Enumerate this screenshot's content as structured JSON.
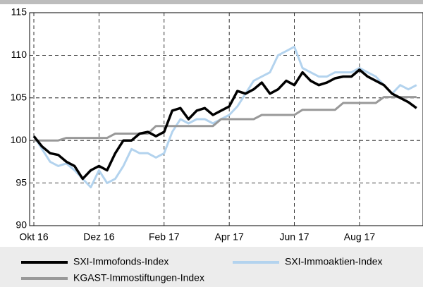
{
  "chart_data": {
    "type": "line",
    "x": [
      0,
      0.25,
      0.5,
      0.75,
      1,
      1.25,
      1.5,
      1.75,
      2,
      2.25,
      2.5,
      2.75,
      3,
      3.25,
      3.5,
      3.75,
      4,
      4.25,
      4.5,
      4.75,
      5,
      5.25,
      5.5,
      5.75,
      6,
      6.25,
      6.5,
      6.75,
      7,
      7.25,
      7.5,
      7.75,
      8,
      8.25,
      8.5,
      8.75,
      9,
      9.25,
      9.5,
      9.75,
      10,
      10.25,
      10.5,
      10.75,
      11,
      11.25,
      11.5,
      11.75
    ],
    "xlim": [
      -0.13,
      11.95
    ],
    "xticks": [
      {
        "value": 0,
        "label": "Okt 16"
      },
      {
        "value": 2,
        "label": "Dez 16"
      },
      {
        "value": 4,
        "label": "Feb 17"
      },
      {
        "value": 6,
        "label": "Apr 17"
      },
      {
        "value": 8,
        "label": "Jun 17"
      },
      {
        "value": 10,
        "label": "Aug 17"
      }
    ],
    "ylim": [
      90,
      115
    ],
    "yticks": [
      90,
      95,
      100,
      105,
      110,
      115
    ],
    "grid": true,
    "series": [
      {
        "name": "SXI-Immoaktien-Index",
        "color": "#b3d3ee",
        "values": [
          100.5,
          99,
          97.5,
          97,
          97.3,
          96.5,
          95.5,
          94.5,
          96.5,
          95,
          95.5,
          97,
          99,
          98.5,
          98.5,
          98,
          98.5,
          101,
          102.5,
          102,
          102.5,
          102.5,
          102,
          102.5,
          103,
          104,
          105.5,
          107,
          107.5,
          108,
          110,
          110.5,
          111,
          108.5,
          108,
          107.5,
          107.5,
          108,
          108,
          108,
          108.5,
          108,
          107.5,
          106.5,
          105.5,
          106.5,
          106,
          106.5
        ]
      },
      {
        "name": "KGAST-Immostiftungen-Index",
        "color": "#999999",
        "values": [
          100,
          100,
          100,
          100,
          100.3,
          100.3,
          100.3,
          100.3,
          100.3,
          100.3,
          100.8,
          100.8,
          100.8,
          100.8,
          100.8,
          101.7,
          101.7,
          101.7,
          101.7,
          101.7,
          101.7,
          101.7,
          101.7,
          102.5,
          102.5,
          102.5,
          102.5,
          102.5,
          103,
          103,
          103,
          103,
          103,
          103.6,
          103.6,
          103.6,
          103.6,
          103.6,
          104.4,
          104.4,
          104.4,
          104.4,
          104.4,
          105.1,
          105.1,
          105.1,
          105.1,
          105.1
        ]
      },
      {
        "name": "SXI-Immofonds-Index",
        "color": "#000000",
        "values": [
          100.5,
          99.3,
          98.5,
          98.3,
          97.5,
          97,
          95.5,
          96.5,
          97,
          96.5,
          98.5,
          100,
          100,
          100.8,
          101,
          100.5,
          101,
          103.5,
          103.8,
          102.5,
          103.5,
          103.8,
          103,
          103.5,
          104,
          105.8,
          105.5,
          106,
          106.8,
          105.5,
          106,
          107,
          106.5,
          108,
          107,
          106.5,
          106.8,
          107.3,
          107.5,
          107.5,
          108.3,
          107.5,
          107,
          106.5,
          105.5,
          105,
          104.5,
          103.8
        ]
      }
    ]
  }
}
